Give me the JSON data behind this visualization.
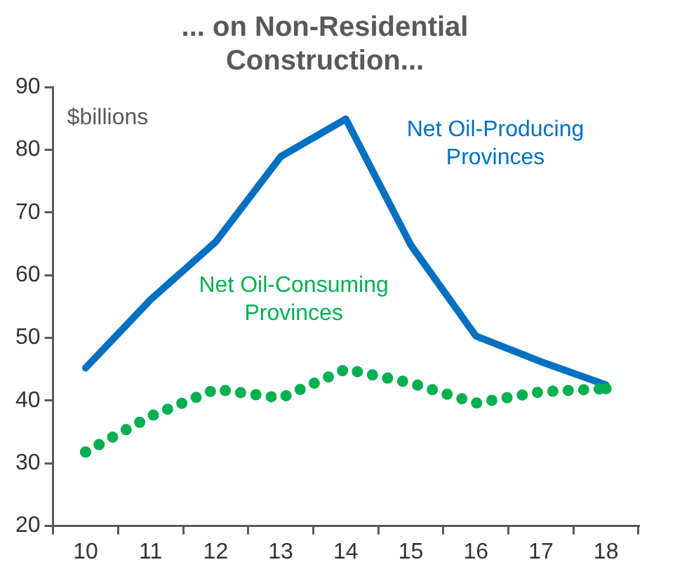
{
  "chart_data": {
    "type": "line",
    "title": "... on Non-Residential Construction...",
    "ylabel": "$billions",
    "categories": [
      "10",
      "11",
      "12",
      "13",
      "14",
      "15",
      "16",
      "17",
      "18"
    ],
    "series": [
      {
        "name": "Net Oil-Producing Provinces",
        "color": "#0070c0",
        "line_style": "solid",
        "values": [
          45.2,
          56.1,
          65.3,
          78.9,
          84.9,
          64.8,
          50.3,
          46.2,
          42.5
        ]
      },
      {
        "name": "Net Oil-Consuming Provinces",
        "color": "#00b050",
        "line_style": "dotted",
        "values": [
          31.8,
          37.5,
          41.8,
          40.4,
          45.0,
          42.8,
          39.6,
          41.4,
          41.9
        ]
      }
    ],
    "ylim": [
      20,
      90
    ],
    "yticks": [
      20,
      30,
      40,
      50,
      60,
      70,
      80,
      90
    ],
    "grid": false,
    "legend": false,
    "marker": "none"
  }
}
